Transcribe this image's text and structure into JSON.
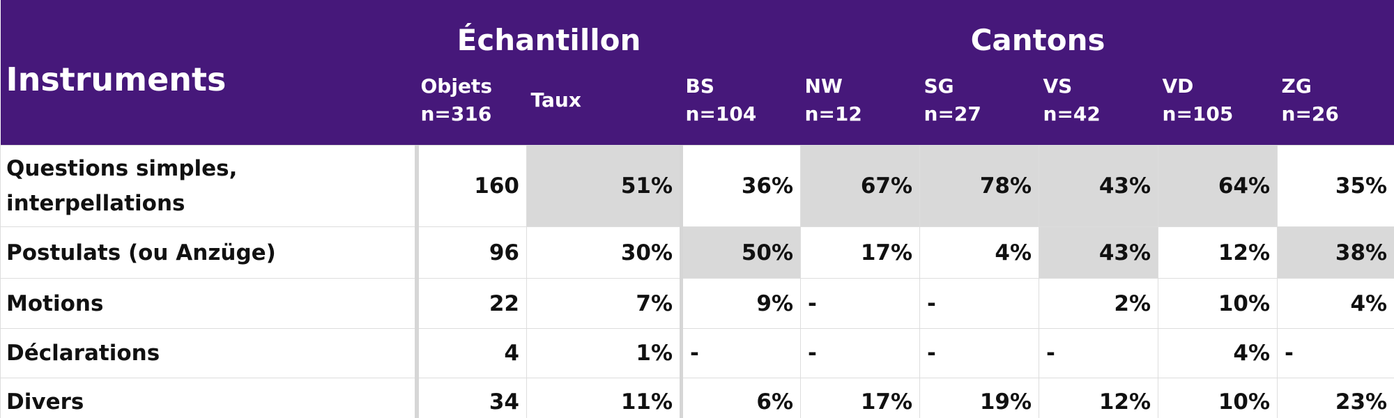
{
  "header": {
    "row_label": "Instruments",
    "groups": [
      {
        "title": "Échantillon",
        "span": 2
      },
      {
        "title": "Cantons",
        "span": 6
      }
    ],
    "columns": [
      {
        "name": "Objets",
        "n": "n=316"
      },
      {
        "name": "Taux"
      },
      {
        "name": "BS",
        "n": "n=104"
      },
      {
        "name": "NW",
        "n": "n=12"
      },
      {
        "name": "SG",
        "n": "n=27"
      },
      {
        "name": "VS",
        "n": "n=42"
      },
      {
        "name": "VD",
        "n": "n=105"
      },
      {
        "name": "ZG",
        "n": "n=26"
      }
    ]
  },
  "rows": [
    {
      "label": "Questions simples, interpellations",
      "cells": [
        "160",
        "51%",
        "36%",
        "67%",
        "78%",
        "43%",
        "64%",
        "35%"
      ],
      "shaded": [
        false,
        true,
        false,
        true,
        true,
        true,
        true,
        false
      ]
    },
    {
      "label": "Postulats (ou Anzüge)",
      "cells": [
        "96",
        "30%",
        "50%",
        "17%",
        "4%",
        "43%",
        "12%",
        "38%"
      ],
      "shaded": [
        false,
        false,
        true,
        false,
        false,
        true,
        false,
        true
      ]
    },
    {
      "label": "Motions",
      "cells": [
        "22",
        "7%",
        "9%",
        "-",
        "-",
        "2%",
        "10%",
        "4%"
      ],
      "shaded": [
        false,
        false,
        false,
        false,
        false,
        false,
        false,
        false
      ]
    },
    {
      "label": "Déclarations",
      "cells": [
        "4",
        "1%",
        "-",
        "-",
        "-",
        "-",
        "4%",
        "-"
      ],
      "shaded": [
        false,
        false,
        false,
        false,
        false,
        false,
        false,
        false
      ]
    },
    {
      "label": "Divers",
      "cells": [
        "34",
        "11%",
        "6%",
        "17%",
        "19%",
        "12%",
        "10%",
        "23%"
      ],
      "shaded": [
        false,
        false,
        false,
        false,
        false,
        false,
        false,
        false
      ]
    }
  ]
}
